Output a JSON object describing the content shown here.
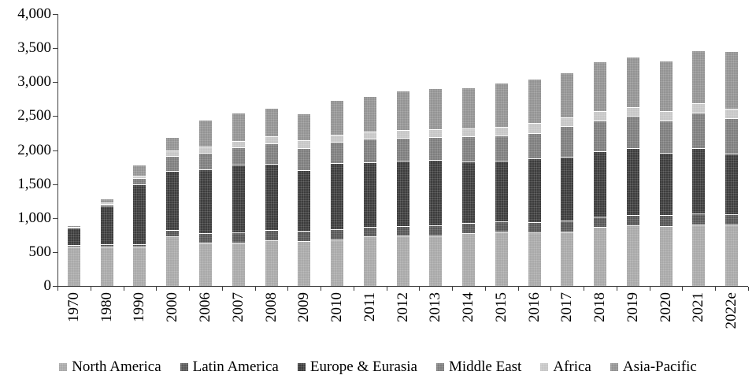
{
  "chart_data": {
    "type": "bar",
    "stacked": true,
    "title": "",
    "xlabel": "",
    "ylabel": "",
    "ylim": [
      0,
      4000
    ],
    "ytick_step": 500,
    "ytick_labels": [
      "0",
      "500",
      "1,000",
      "1,500",
      "2,000",
      "2,500",
      "3,000",
      "3,500",
      "4,000"
    ],
    "grid": false,
    "legend_position": "bottom",
    "categories": [
      "1970",
      "1980",
      "1990",
      "2000",
      "2006",
      "2007",
      "2008",
      "2009",
      "2010",
      "2011",
      "2012",
      "2013",
      "2014",
      "2015",
      "2016",
      "2017",
      "2018",
      "2019",
      "2020",
      "2021",
      "2022e"
    ],
    "series": [
      {
        "name": "North America",
        "color": "#a9a9a9",
        "values": [
          585,
          585,
          575,
          730,
          635,
          640,
          670,
          660,
          680,
          730,
          740,
          740,
          775,
          800,
          790,
          805,
          865,
          890,
          885,
          910,
          905
        ]
      },
      {
        "name": "Latin America",
        "color": "#575757",
        "values": [
          20,
          25,
          35,
          95,
          140,
          145,
          150,
          155,
          155,
          140,
          140,
          150,
          155,
          155,
          150,
          160,
          155,
          155,
          155,
          155,
          150
        ]
      },
      {
        "name": "Europe & Eurasia",
        "color": "#3c3c3c",
        "values": [
          250,
          570,
          890,
          870,
          940,
          995,
          980,
          890,
          975,
          950,
          965,
          960,
          905,
          890,
          940,
          940,
          965,
          980,
          915,
          965,
          890
        ]
      },
      {
        "name": "Middle East",
        "color": "#7e7e7e",
        "values": [
          10,
          30,
          90,
          220,
          250,
          260,
          300,
          320,
          310,
          350,
          335,
          340,
          365,
          365,
          375,
          445,
          450,
          475,
          475,
          520,
          530
        ]
      },
      {
        "name": "Africa",
        "color": "#c7c7c7",
        "values": [
          5,
          15,
          30,
          80,
          90,
          95,
          105,
          115,
          110,
          105,
          110,
          115,
          120,
          135,
          140,
          135,
          140,
          130,
          145,
          135,
          135
        ]
      },
      {
        "name": "Asia-Pacific",
        "color": "#939393",
        "values": [
          15,
          55,
          155,
          185,
          380,
          410,
          400,
          390,
          500,
          510,
          570,
          590,
          590,
          635,
          645,
          645,
          715,
          730,
          730,
          775,
          835
        ]
      }
    ],
    "totals": [
      885,
      1280,
      1775,
      2180,
      2435,
      2545,
      2605,
      2530,
      2730,
      2785,
      2860,
      2895,
      2910,
      2980,
      3040,
      3130,
      3290,
      3360,
      3305,
      3460,
      3445
    ]
  },
  "layout_colors": {
    "axis": "#3f3f3f",
    "background": "#ffffff",
    "separator": "#ffffff"
  }
}
